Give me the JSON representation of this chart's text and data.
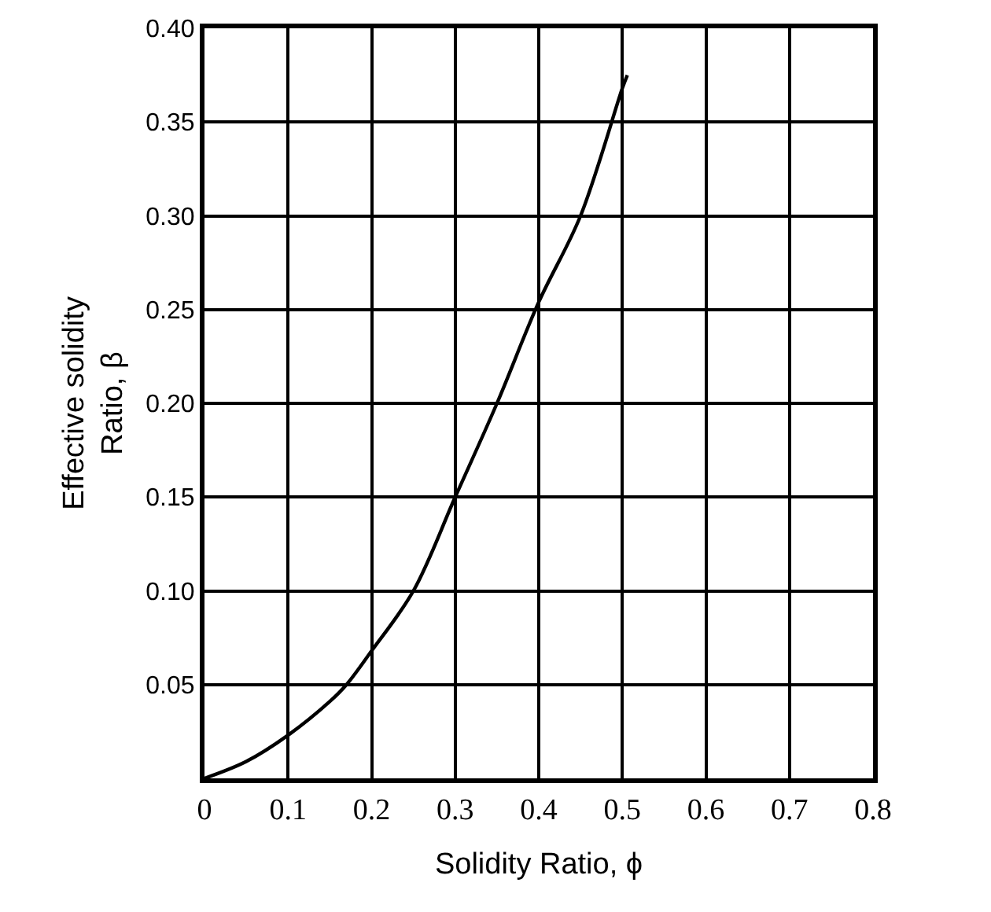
{
  "chart_data": {
    "type": "line",
    "xlabel": "Solidity Ratio, ϕ",
    "ylabel": "Effective solidity\nRatio, β",
    "x": [
      0,
      0.05,
      0.1,
      0.15,
      0.17,
      0.2,
      0.25,
      0.3,
      0.35,
      0.4,
      0.45,
      0.5,
      0.506
    ],
    "series": [
      {
        "color": "#000000",
        "values": [
          0,
          0.009,
          0.023,
          0.041,
          0.05,
          0.068,
          0.1,
          0.15,
          0.2,
          0.254,
          0.3,
          0.368,
          0.375
        ]
      }
    ],
    "xlim": [
      0,
      0.8
    ],
    "ylim": [
      0,
      0.4
    ],
    "xticks": [
      0,
      0.1,
      0.2,
      0.3,
      0.4,
      0.5,
      0.6,
      0.7,
      0.8
    ],
    "yticks": [
      {
        "value": 0,
        "label": null
      },
      {
        "value": 0.05,
        "label": "0.05"
      },
      {
        "value": 0.1,
        "label": "0.10"
      },
      {
        "value": 0.15,
        "label": "0.15"
      },
      {
        "value": 0.2,
        "label": "0.20"
      },
      {
        "value": 0.25,
        "label": "0.25"
      },
      {
        "value": 0.3,
        "label": "0.30"
      },
      {
        "value": 0.35,
        "label": "0.35"
      },
      {
        "value": 0.4,
        "label": "0.40"
      }
    ],
    "grid": true,
    "marker": "none",
    "line_style": "solid"
  }
}
